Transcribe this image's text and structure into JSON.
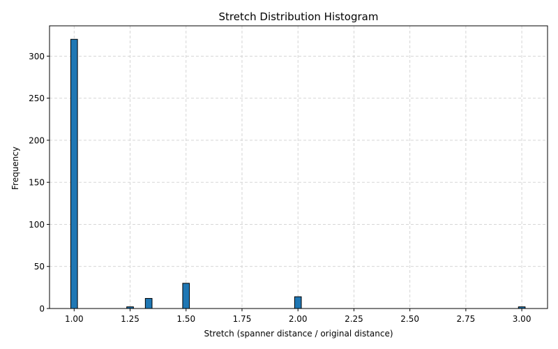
{
  "chart_data": {
    "type": "bar",
    "title": "Stretch Distribution Histogram",
    "xlabel": "Stretch (spanner distance / original distance)",
    "ylabel": "Frequency",
    "xlim": [
      0.89,
      3.115
    ],
    "ylim": [
      0,
      336
    ],
    "grid": true,
    "bin_width": 0.03,
    "bar_color": "#1f77b4",
    "edge_color": "#000000",
    "xticks": [
      1.0,
      1.25,
      1.5,
      1.75,
      2.0,
      2.25,
      2.5,
      2.75,
      3.0
    ],
    "xtick_labels": [
      "1.00",
      "1.25",
      "1.50",
      "1.75",
      "2.00",
      "2.25",
      "2.50",
      "2.75",
      "3.00"
    ],
    "yticks": [
      0,
      50,
      100,
      150,
      200,
      250,
      300
    ],
    "ytick_labels": [
      "0",
      "50",
      "100",
      "150",
      "200",
      "250",
      "300"
    ],
    "bins": [
      {
        "x": 1.0,
        "value": 320
      },
      {
        "x": 1.25,
        "value": 2
      },
      {
        "x": 1.333,
        "value": 12
      },
      {
        "x": 1.5,
        "value": 30
      },
      {
        "x": 2.0,
        "value": 14
      },
      {
        "x": 3.0,
        "value": 2
      }
    ]
  }
}
